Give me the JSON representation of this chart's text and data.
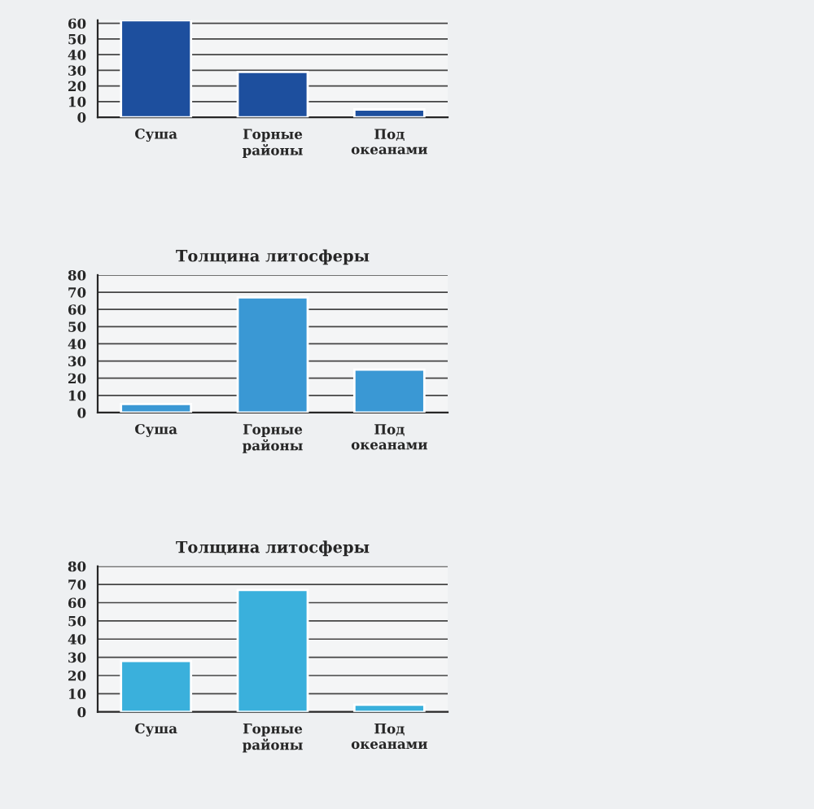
{
  "chart_data": [
    {
      "type": "bar",
      "categories": [
        "Суша",
        "Горные\nрайоны",
        "Под\nокеанами"
      ],
      "values": [
        62,
        29,
        5
      ],
      "color": "#1d4f9e",
      "ylim": [
        0,
        62
      ],
      "yticks": [
        0,
        10,
        20,
        30,
        40,
        50,
        60
      ],
      "grid": "y"
    },
    {
      "type": "bar",
      "title": "Толщина литосферы",
      "categories": [
        "Суша",
        "Горные\nрайоны",
        "Под\nокеанами"
      ],
      "values": [
        5,
        67,
        25
      ],
      "color": "#3a98d4",
      "ylim": [
        0,
        80
      ],
      "yticks": [
        0,
        10,
        20,
        30,
        40,
        50,
        60,
        70,
        80
      ],
      "grid": "y"
    },
    {
      "type": "bar",
      "title": "Толщина литосферы",
      "categories": [
        "Суша",
        "Горные\nрайоны",
        "Под\nокеанами"
      ],
      "values": [
        28,
        67,
        4
      ],
      "color": "#3ab0dc",
      "ylim": [
        0,
        80
      ],
      "yticks": [
        0,
        10,
        20,
        30,
        40,
        50,
        60,
        70,
        80
      ],
      "grid": "y"
    }
  ]
}
